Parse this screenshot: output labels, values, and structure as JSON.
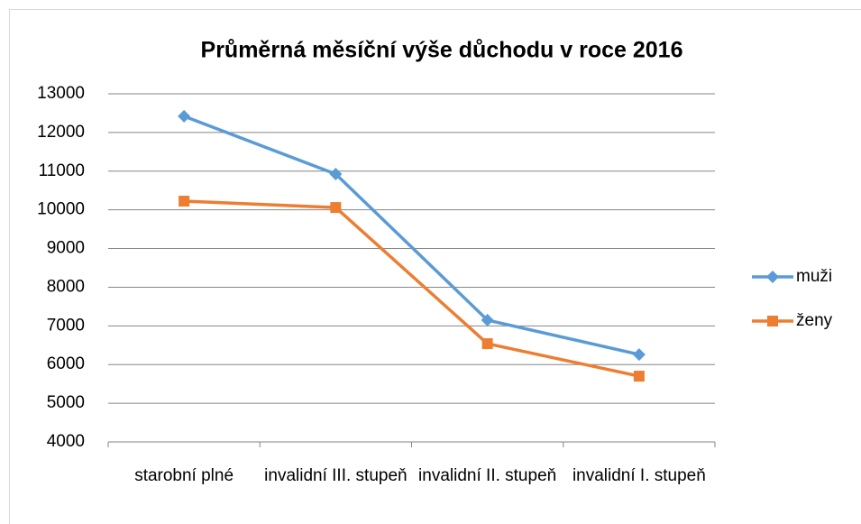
{
  "chart_data": {
    "type": "line",
    "title": "Průměrná měsíční výše důchodu v roce 2016",
    "categories": [
      "starobní plné",
      "invalidní III. stupeň",
      "invalidní II. stupeň",
      "invalidní I. stupeň"
    ],
    "series": [
      {
        "name": "muži",
        "color": "#5b9bd5",
        "marker": "diamond",
        "values": [
          12420,
          10925,
          7150,
          6260
        ]
      },
      {
        "name": "ženy",
        "color": "#ed7d31",
        "marker": "square",
        "values": [
          10225,
          10060,
          6540,
          5700
        ]
      }
    ],
    "ylim": [
      4000,
      13000
    ],
    "yticks": [
      4000,
      5000,
      6000,
      7000,
      8000,
      9000,
      10000,
      11000,
      12000,
      13000
    ],
    "grid": true,
    "legend": "right"
  }
}
